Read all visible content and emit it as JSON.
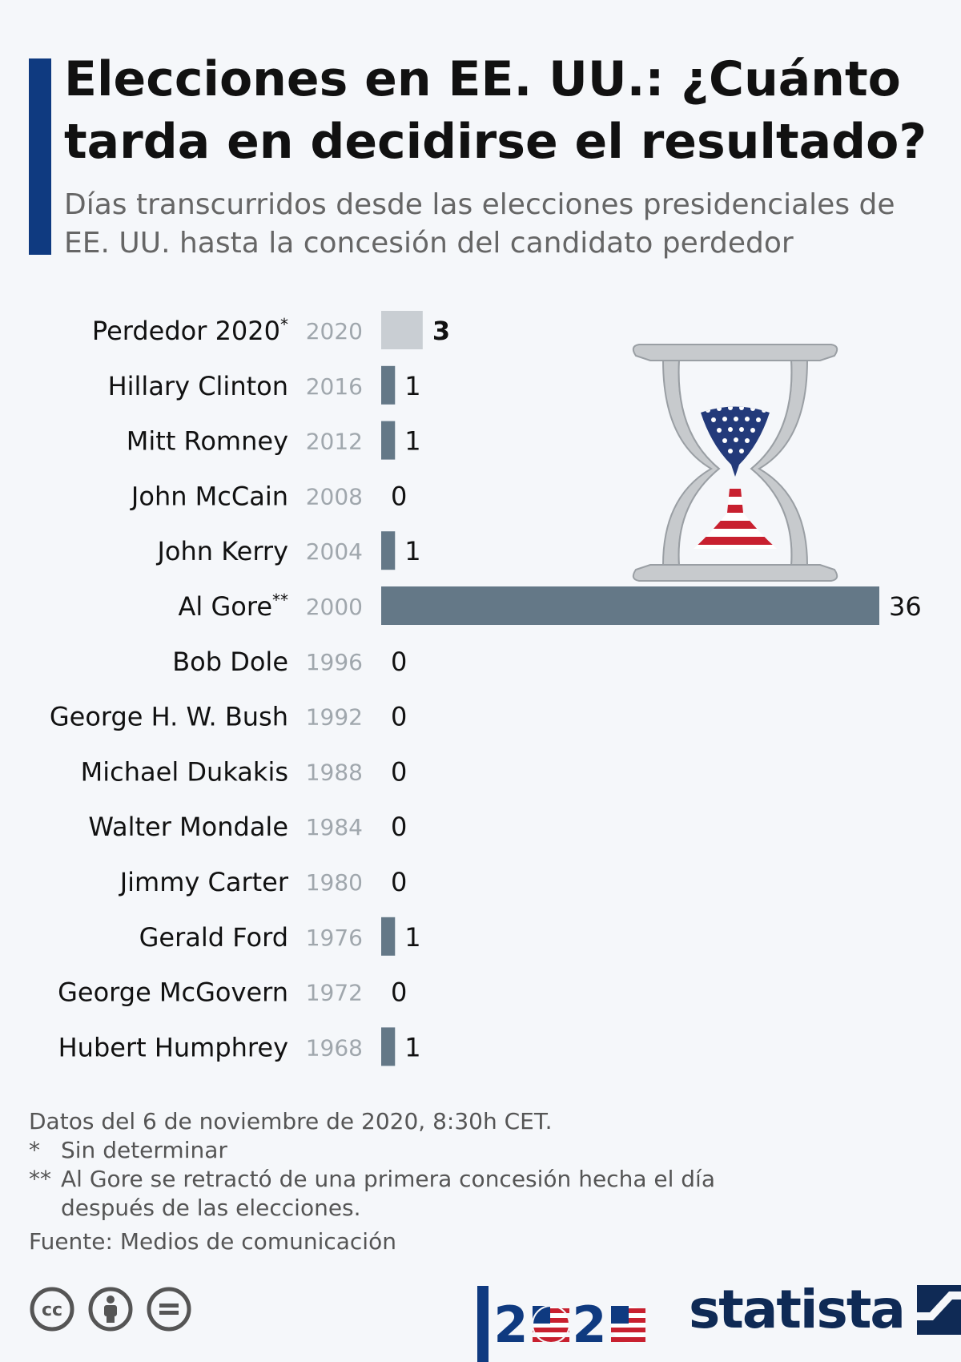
{
  "title": "Elecciones en EE. UU.: ¿Cuánto tarda en decidirse el resultado?",
  "subtitle": "Días transcurridos desde las elecciones presidenciales de EE. UU. hasta la concesión del candidato perdedor",
  "chart_data": {
    "type": "bar",
    "orientation": "horizontal",
    "categories": [
      "Perdedor 2020",
      "Hillary Clinton",
      "Mitt Romney",
      "John McCain",
      "John Kerry",
      "Al Gore",
      "Bob Dole",
      "George H. W. Bush",
      "Michael Dukakis",
      "Walter Mondale",
      "Jimmy Carter",
      "Gerald Ford",
      "George McGovern",
      "Hubert Humphrey"
    ],
    "category_marks": [
      "*",
      "",
      "",
      "",
      "",
      "**",
      "",
      "",
      "",
      "",
      "",
      "",
      "",
      ""
    ],
    "years": [
      "2020",
      "2016",
      "2012",
      "2008",
      "2004",
      "2000",
      "1996",
      "1992",
      "1988",
      "1984",
      "1980",
      "1976",
      "1972",
      "1968"
    ],
    "values": [
      3,
      1,
      1,
      0,
      1,
      36,
      0,
      0,
      0,
      0,
      0,
      1,
      0,
      1
    ],
    "highlight_index": 0,
    "xlim": [
      0,
      36
    ],
    "grid": false,
    "legend": "none",
    "colors": {
      "bar": "#647887",
      "highlight_bar": "#c9ced3",
      "label": "#111111",
      "year": "#a0a7ad"
    }
  },
  "illustration": {
    "icon": "hourglass-us-flag-icon",
    "colors": {
      "frame": "#c7cacd",
      "flag_blue": "#233a7a",
      "flag_red": "#c8202f"
    }
  },
  "footnotes": {
    "data_note": "Datos del 6 de noviembre de 2020, 8:30h CET.",
    "items": [
      {
        "mark": "*",
        "text": "Sin determinar"
      },
      {
        "mark": "**",
        "text": "Al Gore se retractó de una primera concesión hecha el día después de las elecciones."
      }
    ],
    "source": "Fuente: Medios de comunicación"
  },
  "footer": {
    "license_icons": [
      "cc-icon",
      "by-icon",
      "nd-icon"
    ],
    "badge_icon": "2020-election-badge-icon",
    "brand": "statista"
  }
}
